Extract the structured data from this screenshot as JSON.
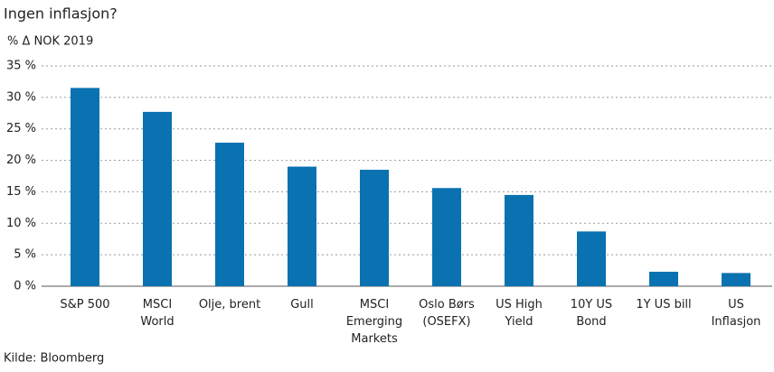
{
  "chart_data": {
    "type": "bar",
    "title": "Ingen inflasjon?",
    "subtitle": "% Δ NOK 2019",
    "source": "Kilde: Bloomberg",
    "categories": [
      "S&P 500",
      "MSCI\nWorld",
      "Olje, brent",
      "Gull",
      "MSCI\nEmerging\nMarkets",
      "Oslo Børs\n(OSEFX)",
      "US High\nYield",
      "10Y US\nBond",
      "1Y US bill",
      "US\nInflasjon"
    ],
    "values": [
      31.5,
      27.7,
      22.8,
      19.0,
      18.5,
      15.6,
      14.5,
      8.7,
      2.3,
      2.1
    ],
    "color": "#0a72b0",
    "ylim": [
      0,
      35
    ],
    "yticks": [
      {
        "value": 0,
        "label": "0 %"
      },
      {
        "value": 5,
        "label": "5 %"
      },
      {
        "value": 10,
        "label": "10 %"
      },
      {
        "value": 15,
        "label": "15 %"
      },
      {
        "value": 20,
        "label": "20 %"
      },
      {
        "value": 25,
        "label": "25 %"
      },
      {
        "value": 30,
        "label": "30 %"
      },
      {
        "value": 35,
        "label": "35 %"
      }
    ],
    "grid": true
  }
}
